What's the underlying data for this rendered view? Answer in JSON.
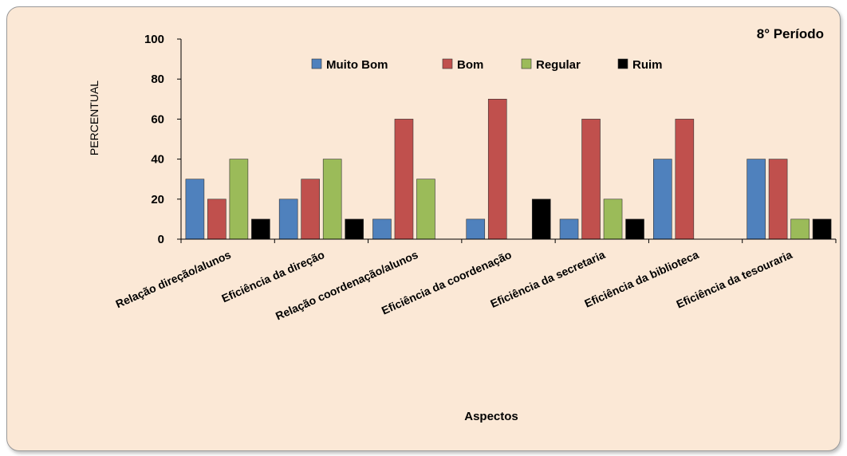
{
  "chart_data": {
    "type": "bar",
    "title": "8° Período",
    "xlabel": "Aspectos",
    "ylabel": "PERCENTUAL",
    "ylim": [
      0,
      100
    ],
    "yticks": [
      "0",
      "20",
      "40",
      "60",
      "80",
      "100"
    ],
    "legend_position": "top",
    "categories": [
      "Relação direção/alunos",
      "Eficiência da direção",
      "Relação coordenação/alunos",
      "Eficiência da coordenação",
      "Eficiência da secretaria",
      "Eficiência da biblioteca",
      "Eficiência da tesouraria"
    ],
    "series": [
      {
        "name": "Muito Bom",
        "color": "#4f81bd",
        "values": [
          30,
          20,
          10,
          10,
          10,
          40,
          40
        ]
      },
      {
        "name": "Bom",
        "color": "#c0504d",
        "values": [
          20,
          30,
          60,
          70,
          60,
          60,
          40
        ]
      },
      {
        "name": "Regular",
        "color": "#9bbb59",
        "values": [
          40,
          40,
          30,
          0,
          20,
          0,
          10
        ]
      },
      {
        "name": "Ruim",
        "color": "#000000",
        "values": [
          10,
          10,
          0,
          20,
          10,
          0,
          10
        ]
      }
    ]
  }
}
